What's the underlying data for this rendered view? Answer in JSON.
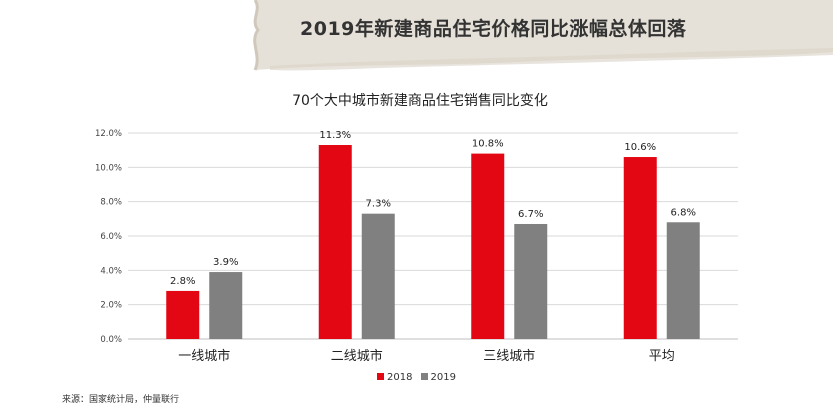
{
  "header": {
    "headline": "2019年新建商品住宅价格同比涨幅总体回落"
  },
  "chart_data": {
    "type": "bar",
    "title": "70个大中城市新建商品住宅销售同比变化",
    "categories": [
      "一线城市",
      "二线城市",
      "三线城市",
      "平均"
    ],
    "series": [
      {
        "name": "2018",
        "color": "#e30613",
        "values": [
          2.8,
          11.3,
          10.8,
          10.6
        ],
        "labels": [
          "2.8%",
          "11.3%",
          "10.8%",
          "10.6%"
        ]
      },
      {
        "name": "2019",
        "color": "#808080",
        "values": [
          3.9,
          7.3,
          6.7,
          6.8
        ],
        "labels": [
          "3.9%",
          "7.3%",
          "6.7%",
          "6.8%"
        ]
      }
    ],
    "ylim": [
      0,
      12
    ],
    "yticks": [
      "0.0%",
      "2.0%",
      "4.0%",
      "6.0%",
      "8.0%",
      "10.0%",
      "12.0%"
    ],
    "grid": true,
    "legend_position": "bottom"
  },
  "footer": {
    "source": "来源：国家统计局，仲量联行"
  }
}
